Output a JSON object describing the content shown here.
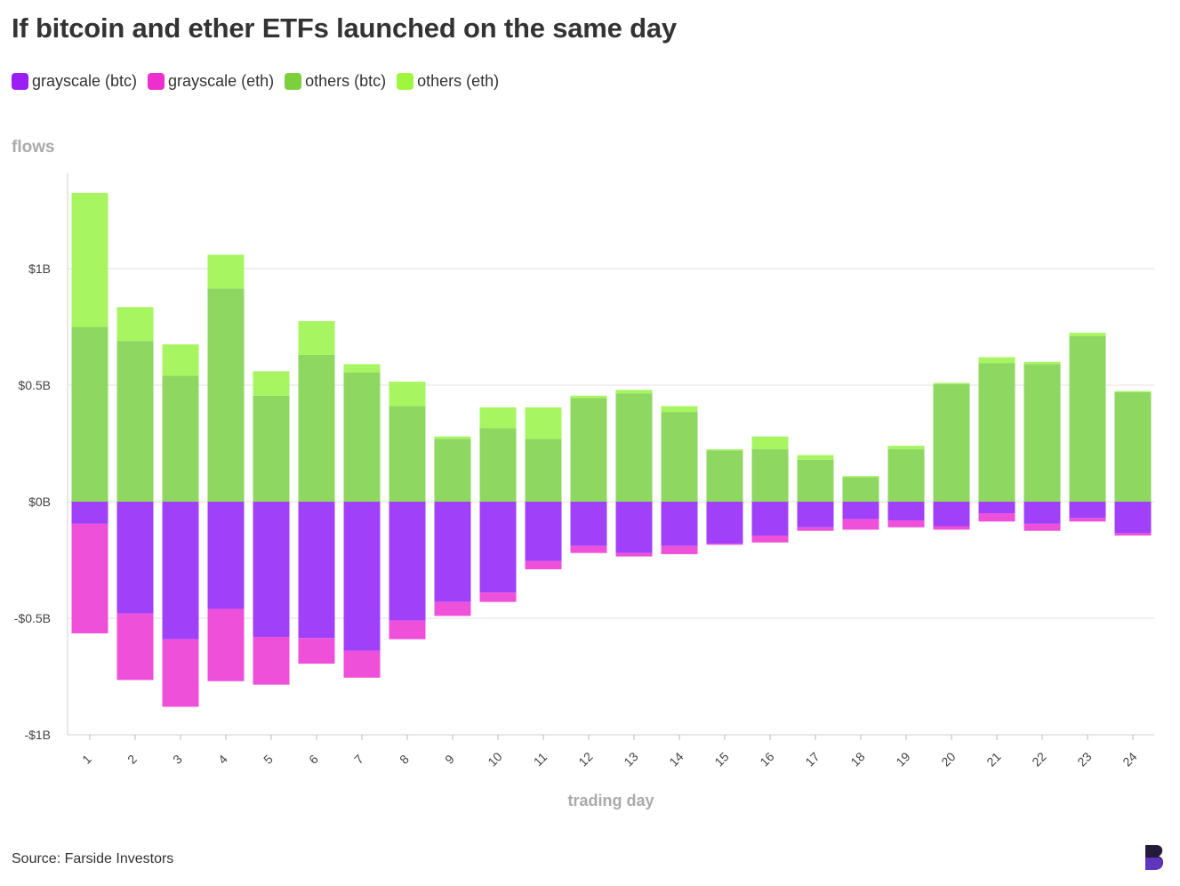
{
  "title": "If bitcoin and ether ETFs launched on the same day",
  "source": "Source: Farside Investors",
  "logo": "B",
  "colors": {
    "grayscale_btc": "#a040f8",
    "grayscale_eth": "#ef50d9",
    "others_btc": "#8ed760",
    "others_eth": "#a8f562",
    "grid": "#e6e6e6",
    "axis_title": "#aaaaaa",
    "tick": "#444444",
    "logo_dark": "#241a3a",
    "logo_accent": "#6a3bd6"
  },
  "chart_data": {
    "type": "bar",
    "stacked": true,
    "title": "If bitcoin and ether ETFs launched on the same day",
    "xlabel": "trading day",
    "ylabel": "flows",
    "ylim": [
      -1,
      1.33
    ],
    "yticks": [
      {
        "value": 1,
        "label": "$1B"
      },
      {
        "value": 0.5,
        "label": "$0.5B"
      },
      {
        "value": 0,
        "label": "$0B"
      },
      {
        "value": -0.5,
        "label": "-$0.5B"
      },
      {
        "value": -1,
        "label": "-$1B"
      }
    ],
    "grid": true,
    "legend_position": "top-left",
    "categories": [
      "1",
      "2",
      "3",
      "4",
      "5",
      "6",
      "7",
      "8",
      "9",
      "10",
      "11",
      "12",
      "13",
      "14",
      "15",
      "16",
      "17",
      "18",
      "19",
      "20",
      "21",
      "22",
      "23",
      "24"
    ],
    "series": [
      {
        "name": "grayscale (btc)",
        "color_key": "grayscale_btc",
        "values": [
          -0.095,
          -0.48,
          -0.59,
          -0.46,
          -0.58,
          -0.585,
          -0.64,
          -0.51,
          -0.43,
          -0.39,
          -0.255,
          -0.19,
          -0.22,
          -0.19,
          -0.18,
          -0.145,
          -0.11,
          -0.075,
          -0.08,
          -0.105,
          -0.05,
          -0.095,
          -0.07,
          -0.135
        ]
      },
      {
        "name": "grayscale (eth)",
        "color_key": "grayscale_eth",
        "values": [
          -0.47,
          -0.285,
          -0.29,
          -0.31,
          -0.205,
          -0.11,
          -0.115,
          -0.08,
          -0.06,
          -0.04,
          -0.035,
          -0.03,
          -0.015,
          -0.035,
          -0.005,
          -0.03,
          -0.015,
          -0.045,
          -0.03,
          -0.015,
          -0.035,
          -0.03,
          -0.015,
          -0.01
        ]
      },
      {
        "name": "others (btc)",
        "color_key": "others_btc",
        "values": [
          0.75,
          0.69,
          0.54,
          0.915,
          0.455,
          0.63,
          0.555,
          0.41,
          0.27,
          0.315,
          0.27,
          0.445,
          0.465,
          0.385,
          0.22,
          0.225,
          0.18,
          0.105,
          0.225,
          0.505,
          0.595,
          0.59,
          0.71,
          0.47
        ]
      },
      {
        "name": "others (eth)",
        "color_key": "others_eth",
        "values": [
          0.575,
          0.145,
          0.135,
          0.145,
          0.105,
          0.145,
          0.035,
          0.105,
          0.01,
          0.09,
          0.135,
          0.01,
          0.015,
          0.025,
          0.005,
          0.055,
          0.02,
          0.005,
          0.015,
          0.005,
          0.025,
          0.01,
          0.015,
          0.005
        ]
      }
    ]
  }
}
